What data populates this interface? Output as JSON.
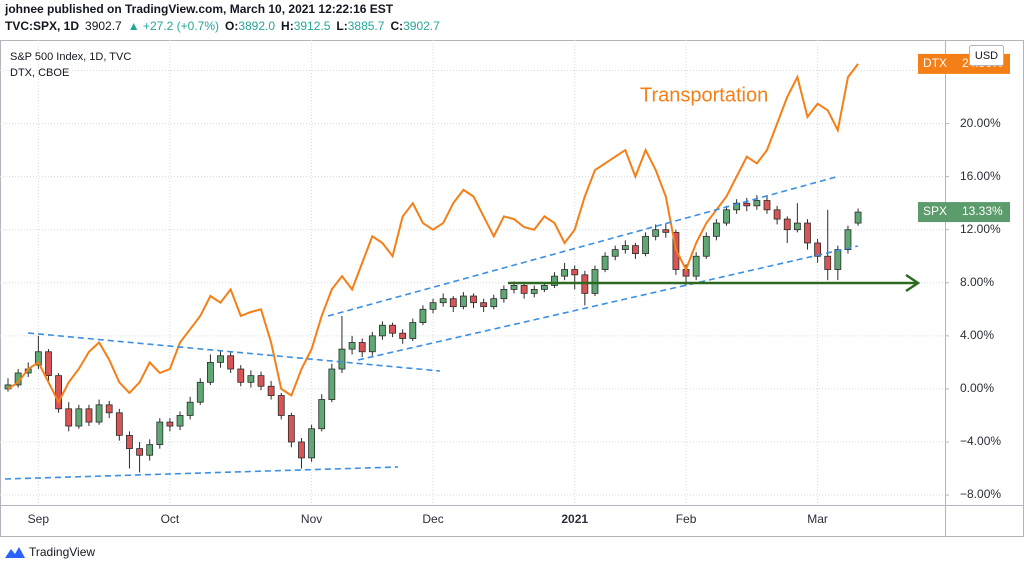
{
  "header": {
    "author_line": "johnee published on TradingView.com, March 10, 2021 12:22:16 EST",
    "symbol": "TVC:SPX, 1D",
    "price": "3902.7",
    "change": "▲ +27.2 (+0.7%)",
    "ohlc": [
      {
        "key": "O:",
        "value": "3892.0"
      },
      {
        "key": "H:",
        "value": "3912.5"
      },
      {
        "key": "L:",
        "value": "3885.7"
      },
      {
        "key": "C:",
        "value": "3902.7"
      }
    ]
  },
  "chart_data": {
    "type": "candlestick",
    "categories": [
      null,
      null,
      null,
      "Sep",
      null,
      null,
      null,
      null,
      null,
      null,
      null,
      null,
      null,
      null,
      null,
      null,
      "Oct",
      null,
      null,
      null,
      null,
      null,
      null,
      null,
      null,
      null,
      null,
      null,
      null,
      null,
      "Nov",
      null,
      null,
      null,
      null,
      null,
      null,
      null,
      null,
      null,
      null,
      null,
      "Dec",
      null,
      null,
      null,
      null,
      null,
      null,
      null,
      null,
      null,
      null,
      null,
      null,
      null,
      "2021",
      null,
      null,
      null,
      null,
      null,
      null,
      null,
      null,
      null,
      null,
      "Feb",
      null,
      null,
      null,
      null,
      null,
      null,
      null,
      null,
      null,
      null,
      null,
      null,
      "Mar",
      null,
      null,
      null,
      null
    ],
    "series": [
      {
        "name": "S&P 500 Index, 1D, TVC",
        "type": "candlestick",
        "tag": "SPX",
        "value_label": "13.33%",
        "up_color": "#5fa873",
        "down_color": "#d95454",
        "tag_color": "#5c9b6c",
        "open": [
          0.0,
          0.3,
          1.2,
          1.8,
          2.8,
          1.0,
          -1.5,
          -2.8,
          -1.5,
          -2.5,
          -1.2,
          -1.8,
          -3.5,
          -4.5,
          -5.0,
          -4.2,
          -2.5,
          -2.8,
          -2.0,
          -1.0,
          0.5,
          2.0,
          2.5,
          1.5,
          0.5,
          1.0,
          0.2,
          -0.5,
          -2.0,
          -4.0,
          -5.2,
          -3.0,
          -0.8,
          1.5,
          3.0,
          3.5,
          2.8,
          4.0,
          4.8,
          4.2,
          3.8,
          5.0,
          6.0,
          6.5,
          6.8,
          6.2,
          7.0,
          6.5,
          6.2,
          6.8,
          7.5,
          7.8,
          7.2,
          7.5,
          7.8,
          8.5,
          9.0,
          8.6,
          7.2,
          9.0,
          10.0,
          10.5,
          10.8,
          10.2,
          11.5,
          12.0,
          11.8,
          9.0,
          8.5,
          10.0,
          11.5,
          12.5,
          13.5,
          14.0,
          13.8,
          14.2,
          13.5,
          12.8,
          12.0,
          12.5,
          11.0,
          10.0,
          9.0,
          10.5,
          12.5
        ],
        "high": [
          0.8,
          1.5,
          2.0,
          4.0,
          3.0,
          1.2,
          -1.0,
          -1.2,
          -1.2,
          -0.8,
          -0.9,
          -1.5,
          -3.2,
          -4.0,
          -3.8,
          -2.2,
          -2.2,
          -1.7,
          -0.6,
          0.8,
          2.6,
          2.9,
          2.8,
          1.8,
          1.4,
          1.3,
          0.6,
          -0.3,
          -1.8,
          -3.7,
          -2.7,
          -0.4,
          1.9,
          5.5,
          4.0,
          3.8,
          4.3,
          5.1,
          5.0,
          4.5,
          5.3,
          6.3,
          6.8,
          7.2,
          7.0,
          7.3,
          7.2,
          6.8,
          7.1,
          7.8,
          8.1,
          8.0,
          7.8,
          8.0,
          8.8,
          9.5,
          9.3,
          8.9,
          9.3,
          10.3,
          10.8,
          11.2,
          11.0,
          11.8,
          12.4,
          12.5,
          12.0,
          9.4,
          10.3,
          11.8,
          12.8,
          13.8,
          14.3,
          14.4,
          14.6,
          14.5,
          13.8,
          13.0,
          14.0,
          12.8,
          11.3,
          13.5,
          10.8,
          12.3,
          13.6
        ],
        "low": [
          -0.2,
          0.1,
          0.9,
          1.5,
          0.6,
          -1.8,
          -3.2,
          -3.0,
          -2.8,
          -2.7,
          -2.2,
          -3.9,
          -6.0,
          -6.3,
          -5.4,
          -4.5,
          -3.2,
          -3.1,
          -2.3,
          -1.2,
          0.3,
          1.6,
          1.2,
          0.2,
          0.1,
          -0.1,
          -0.8,
          -2.3,
          -4.4,
          -6.0,
          -5.5,
          -3.2,
          -1.0,
          1.2,
          2.6,
          2.4,
          2.5,
          3.7,
          3.9,
          3.4,
          3.6,
          4.8,
          5.7,
          6.2,
          5.8,
          6.0,
          6.1,
          5.8,
          6.0,
          6.5,
          7.2,
          6.8,
          6.9,
          7.3,
          7.6,
          8.2,
          7.5,
          6.3,
          7.0,
          8.8,
          9.7,
          10.2,
          9.8,
          10.0,
          11.2,
          11.4,
          8.6,
          7.8,
          8.2,
          9.8,
          11.2,
          12.3,
          13.2,
          13.4,
          13.5,
          13.2,
          12.4,
          11.0,
          11.8,
          10.5,
          9.5,
          8.2,
          8.2,
          10.2,
          12.3
        ],
        "close": [
          0.3,
          1.2,
          1.5,
          2.8,
          1.0,
          -1.5,
          -2.8,
          -1.5,
          -2.5,
          -1.2,
          -1.8,
          -3.5,
          -4.5,
          -5.0,
          -4.2,
          -2.5,
          -2.8,
          -2.0,
          -1.0,
          0.5,
          2.0,
          2.5,
          1.5,
          0.5,
          1.0,
          0.2,
          -0.5,
          -2.0,
          -4.0,
          -5.2,
          -3.0,
          -0.8,
          1.5,
          3.0,
          3.5,
          2.8,
          4.0,
          4.8,
          4.2,
          3.8,
          5.0,
          6.0,
          6.5,
          6.8,
          6.2,
          7.0,
          6.5,
          6.2,
          6.8,
          7.5,
          7.8,
          7.2,
          7.5,
          7.8,
          8.5,
          9.0,
          8.6,
          7.2,
          9.0,
          10.0,
          10.5,
          10.8,
          10.2,
          11.5,
          12.0,
          11.8,
          9.0,
          8.5,
          10.0,
          11.5,
          12.5,
          13.5,
          14.0,
          13.8,
          14.2,
          13.5,
          12.8,
          12.0,
          12.5,
          11.0,
          10.0,
          9.0,
          10.5,
          12.0,
          13.33
        ]
      },
      {
        "name": "DTX, CBOE",
        "type": "line",
        "tag": "DTX",
        "value_label": "24.50%",
        "color": "#f57f17",
        "values": [
          0,
          0.5,
          1.5,
          2,
          0.5,
          -1,
          0.5,
          1.5,
          2.8,
          3.5,
          2.2,
          0.5,
          -0.3,
          0.5,
          2,
          1.2,
          1.5,
          3.5,
          4.5,
          5.5,
          7,
          6.5,
          7.5,
          5.5,
          5.8,
          6,
          3.5,
          0,
          -0.5,
          1.5,
          3,
          5.5,
          7.5,
          8.5,
          7.5,
          9.5,
          11.5,
          11,
          10,
          13,
          14,
          12.5,
          12,
          12.5,
          14,
          15,
          14.5,
          13,
          11.5,
          13,
          12.8,
          12.2,
          12,
          13,
          12.5,
          11,
          12,
          14.5,
          16.5,
          17,
          17.5,
          18,
          16,
          18,
          16.5,
          14.5,
          10.5,
          9,
          11,
          12.5,
          13.5,
          14.5,
          16,
          17.5,
          17,
          18,
          20,
          22,
          23.5,
          20.5,
          21.5,
          21,
          19.5,
          23.5,
          24.5
        ]
      }
    ],
    "annotation": "Transportation",
    "currency": "USD",
    "ylim": [
      -8.75,
      26.3
    ],
    "yticks": [
      {
        "value": -8,
        "label": "−8.00%"
      },
      {
        "value": -4,
        "label": "−4.00%"
      },
      {
        "value": 0,
        "label": "0.00%"
      },
      {
        "value": 4,
        "label": "4.00%"
      },
      {
        "value": 8,
        "label": "8.00%"
      },
      {
        "value": 12,
        "label": "12.00%"
      },
      {
        "value": 16,
        "label": "16.00%"
      },
      {
        "value": 20,
        "label": "20.00%"
      },
      {
        "value": 24,
        "label": "24.00%"
      }
    ],
    "grid": true
  },
  "footer": {
    "brand": "TradingView"
  }
}
